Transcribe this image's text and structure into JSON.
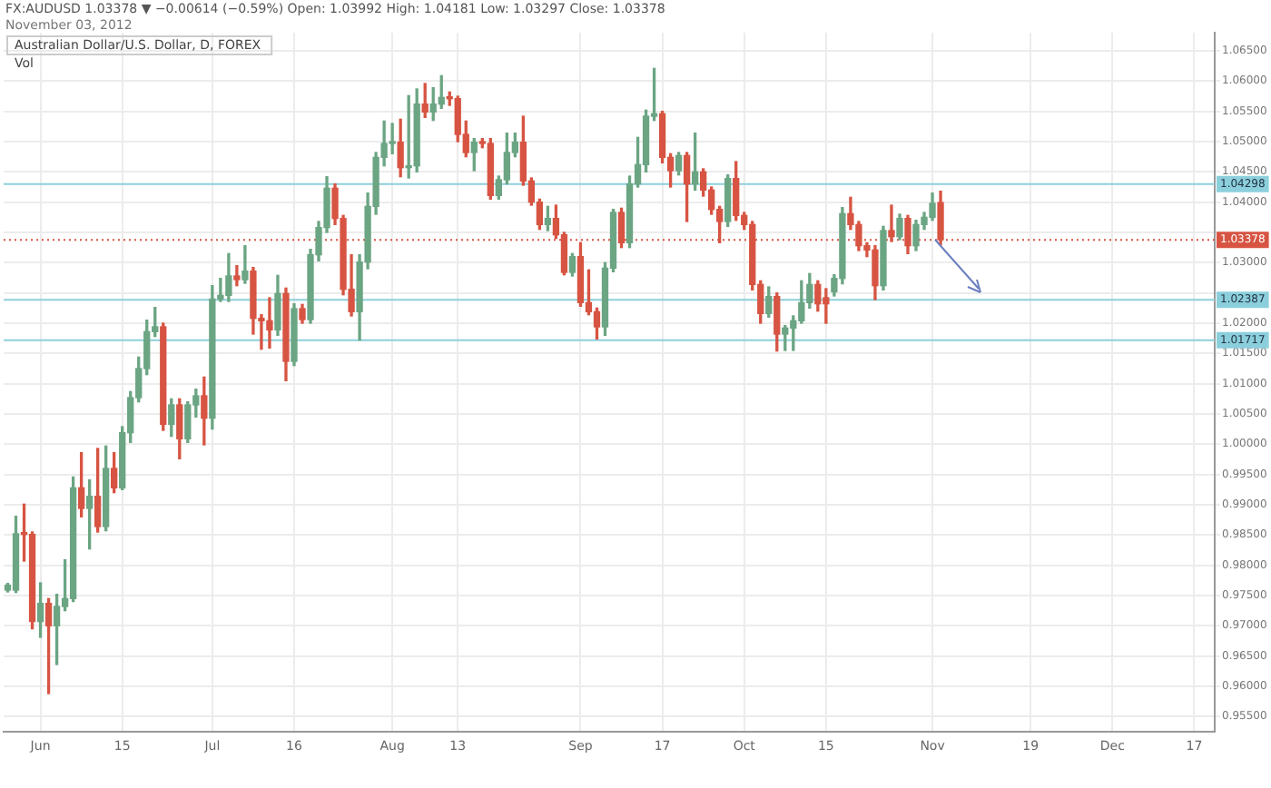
{
  "chart_data": {
    "type": "candlestick",
    "title": "FX:AUDUSD 1.03378 ▼ −0.00614 (−0.59%) Open: 1.03992 High: 1.04181 Low: 1.03297 Close: 1.03378",
    "subtitle": "November 03, 2012",
    "annotations": [
      "Australian Dollar/U.S. Dollar, D, FOREX",
      "Vol"
    ],
    "categories": [
      null,
      null,
      null,
      null,
      "Jun",
      null,
      null,
      null,
      null,
      null,
      null,
      null,
      null,
      null,
      "15",
      null,
      null,
      null,
      null,
      null,
      null,
      null,
      null,
      null,
      null,
      "Jul",
      null,
      null,
      null,
      null,
      null,
      null,
      null,
      null,
      null,
      "16",
      null,
      null,
      null,
      null,
      null,
      null,
      null,
      null,
      null,
      null,
      null,
      "Aug",
      null,
      null,
      null,
      null,
      null,
      null,
      null,
      "13",
      null,
      null,
      null,
      null,
      null,
      null,
      null,
      null,
      null,
      null,
      null,
      null,
      null,
      null,
      "Sep",
      null,
      null,
      null,
      null,
      null,
      null,
      null,
      null,
      null,
      "17",
      null,
      null,
      null,
      null,
      null,
      null,
      null,
      null,
      null,
      "Oct",
      null,
      null,
      null,
      null,
      null,
      null,
      null,
      null,
      null,
      "15",
      null,
      null,
      null,
      null,
      null,
      null,
      null,
      null,
      null,
      null,
      null,
      null,
      "Nov",
      null,
      null,
      null,
      null,
      null,
      null,
      null,
      null,
      null,
      null,
      null,
      "19",
      null,
      null,
      null,
      null,
      null,
      null,
      null,
      null,
      null,
      "Dec",
      null,
      null,
      null,
      null,
      null,
      null,
      null,
      null,
      null,
      "17",
      null,
      null
    ],
    "ohlc": [
      [
        0.9759,
        0.977,
        0.9756,
        0.9767
      ],
      [
        0.9759,
        0.9881,
        0.9755,
        0.9852
      ],
      [
        0.9852,
        0.9901,
        0.9807,
        0.9851
      ],
      [
        0.9851,
        0.9855,
        0.9695,
        0.9707
      ],
      [
        0.9707,
        0.9771,
        0.9681,
        0.9737
      ],
      [
        0.9737,
        0.9745,
        0.9588,
        0.97
      ],
      [
        0.97,
        0.9752,
        0.9636,
        0.9732
      ],
      [
        0.9732,
        0.9809,
        0.9725,
        0.9745
      ],
      [
        0.9745,
        0.9946,
        0.974,
        0.9928
      ],
      [
        0.9928,
        0.9986,
        0.988,
        0.9894
      ],
      [
        0.9894,
        0.9941,
        0.9827,
        0.9914
      ],
      [
        0.9914,
        0.9993,
        0.9855,
        0.9864
      ],
      [
        0.9864,
        0.9997,
        0.9857,
        0.996
      ],
      [
        0.996,
        0.9986,
        0.992,
        0.9928
      ],
      [
        0.9928,
        1.0029,
        0.9925,
        1.0019
      ],
      [
        1.0019,
        1.0087,
        1.0003,
        1.0077
      ],
      [
        1.0077,
        1.0144,
        1.007,
        1.0125
      ],
      [
        1.0125,
        1.0205,
        1.0115,
        1.0186
      ],
      [
        1.0186,
        1.0226,
        1.0178,
        1.0194
      ],
      [
        1.0194,
        1.02,
        1.0023,
        1.0033
      ],
      [
        1.0033,
        1.0075,
        1.0013,
        1.0065
      ],
      [
        1.0065,
        1.0075,
        0.9976,
        1.0009
      ],
      [
        1.0009,
        1.007,
        1.0003,
        1.0065
      ],
      [
        1.0065,
        1.0091,
        1.0045,
        1.008
      ],
      [
        1.008,
        1.0111,
        0.9999,
        1.0043
      ],
      [
        1.0043,
        1.0262,
        1.0025,
        1.024
      ],
      [
        1.024,
        1.0274,
        1.0236,
        1.0246
      ],
      [
        1.0246,
        1.0315,
        1.0236,
        1.0278
      ],
      [
        1.0278,
        1.0295,
        1.0262,
        1.0272
      ],
      [
        1.0272,
        1.0328,
        1.0266,
        1.0286
      ],
      [
        1.0286,
        1.0292,
        1.0182,
        1.0208
      ],
      [
        1.0208,
        1.0214,
        1.0157,
        1.0204
      ],
      [
        1.0204,
        1.0242,
        1.0159,
        1.0189
      ],
      [
        1.0189,
        1.0279,
        1.018,
        1.0249
      ],
      [
        1.0249,
        1.0258,
        1.0105,
        1.0137
      ],
      [
        1.0137,
        1.0232,
        1.013,
        1.0224
      ],
      [
        1.0224,
        1.0231,
        1.02,
        1.0206
      ],
      [
        1.0206,
        1.0322,
        1.02,
        1.0313
      ],
      [
        1.0313,
        1.0368,
        1.0303,
        1.0358
      ],
      [
        1.0358,
        1.0442,
        1.035,
        1.0423
      ],
      [
        1.0423,
        1.043,
        1.0363,
        1.0373
      ],
      [
        1.0373,
        1.0378,
        1.0247,
        1.0256
      ],
      [
        1.0256,
        1.0313,
        1.0212,
        1.0219
      ],
      [
        1.0219,
        1.0313,
        1.0172,
        1.0301
      ],
      [
        1.0301,
        1.0415,
        1.029,
        1.0393
      ],
      [
        1.0393,
        1.0482,
        1.038,
        1.0474
      ],
      [
        1.0474,
        1.0534,
        1.046,
        1.0497
      ],
      [
        1.0497,
        1.053,
        1.048,
        1.0499
      ],
      [
        1.0499,
        1.0537,
        1.0442,
        1.0457
      ],
      [
        1.0457,
        1.0576,
        1.044,
        1.046
      ],
      [
        1.046,
        1.0587,
        1.045,
        1.0562
      ],
      [
        1.0562,
        1.0596,
        1.054,
        1.0549
      ],
      [
        1.0549,
        1.0589,
        1.0535,
        1.0562
      ],
      [
        1.0562,
        1.0609,
        1.0555,
        1.0573
      ],
      [
        1.0573,
        1.0582,
        1.056,
        1.0571
      ],
      [
        1.0571,
        1.0575,
        1.05,
        1.0512
      ],
      [
        1.0512,
        1.0534,
        1.0475,
        1.0482
      ],
      [
        1.0482,
        1.0505,
        1.0452,
        1.0499
      ],
      [
        1.0499,
        1.0505,
        1.049,
        1.0497
      ],
      [
        1.0497,
        1.0505,
        1.0405,
        1.0411
      ],
      [
        1.0411,
        1.0443,
        1.0405,
        1.0437
      ],
      [
        1.0437,
        1.0514,
        1.043,
        1.0482
      ],
      [
        1.0482,
        1.0514,
        1.0475,
        1.0499
      ],
      [
        1.0499,
        1.0542,
        1.0428,
        1.0435
      ],
      [
        1.0435,
        1.044,
        1.0395,
        1.04
      ],
      [
        1.04,
        1.0405,
        1.0355,
        1.0363
      ],
      [
        1.0363,
        1.0393,
        1.0353,
        1.0373
      ],
      [
        1.0373,
        1.0395,
        1.034,
        1.0346
      ],
      [
        1.0346,
        1.035,
        1.028,
        1.0284
      ],
      [
        1.0284,
        1.0315,
        1.0278,
        1.031
      ],
      [
        1.031,
        1.0333,
        1.0228,
        1.0234
      ],
      [
        1.0234,
        1.0288,
        1.0214,
        1.0219
      ],
      [
        1.0219,
        1.0225,
        1.0174,
        1.0194
      ],
      [
        1.0194,
        1.03,
        1.018,
        1.0291
      ],
      [
        1.0291,
        1.0388,
        1.0285,
        1.0383
      ],
      [
        1.0383,
        1.039,
        1.0325,
        1.0333
      ],
      [
        1.0333,
        1.0443,
        1.0325,
        1.043
      ],
      [
        1.043,
        1.0507,
        1.0425,
        1.0462
      ],
      [
        1.0462,
        1.0552,
        1.045,
        1.0542
      ],
      [
        1.0542,
        1.0621,
        1.0535,
        1.0546
      ],
      [
        1.0546,
        1.055,
        1.0465,
        1.0474
      ],
      [
        1.0474,
        1.048,
        1.0425,
        1.0452
      ],
      [
        1.0452,
        1.0482,
        1.0445,
        1.0477
      ],
      [
        1.0477,
        1.0482,
        1.0368,
        1.043
      ],
      [
        1.043,
        1.0514,
        1.042,
        1.045
      ],
      [
        1.045,
        1.0455,
        1.041,
        1.042
      ],
      [
        1.042,
        1.0425,
        1.038,
        1.0388
      ],
      [
        1.0388,
        1.0393,
        1.0333,
        1.0368
      ],
      [
        1.0368,
        1.0445,
        1.036,
        1.0439
      ],
      [
        1.0439,
        1.0467,
        1.037,
        1.0378
      ],
      [
        1.0378,
        1.0383,
        1.0355,
        1.0363
      ],
      [
        1.0363,
        1.0368,
        1.0255,
        1.0264
      ],
      [
        1.0264,
        1.027,
        1.02,
        1.0216
      ],
      [
        1.0216,
        1.026,
        1.021,
        1.0244
      ],
      [
        1.0244,
        1.025,
        1.0154,
        1.0182
      ],
      [
        1.0182,
        1.0196,
        1.0155,
        1.0192
      ],
      [
        1.0192,
        1.0212,
        1.0155,
        1.0204
      ],
      [
        1.0204,
        1.027,
        1.02,
        1.0234
      ],
      [
        1.0234,
        1.0282,
        1.0225,
        1.0264
      ],
      [
        1.0264,
        1.027,
        1.022,
        1.0232
      ],
      [
        1.0242,
        1.0257,
        1.02,
        1.0232
      ],
      [
        1.0252,
        1.028,
        1.0245,
        1.0274
      ],
      [
        1.0274,
        1.0391,
        1.0265,
        1.0381
      ],
      [
        1.0381,
        1.0408,
        1.0355,
        1.0363
      ],
      [
        1.0363,
        1.0368,
        1.032,
        1.0328
      ],
      [
        1.0328,
        1.0333,
        1.031,
        1.0321
      ],
      [
        1.0321,
        1.0328,
        1.0239,
        1.0262
      ],
      [
        1.0262,
        1.036,
        1.0255,
        1.0353
      ],
      [
        1.0353,
        1.0395,
        1.0335,
        1.0343
      ],
      [
        1.0343,
        1.038,
        1.0338,
        1.0373
      ],
      [
        1.0373,
        1.0378,
        1.0315,
        1.0328
      ],
      [
        1.0328,
        1.037,
        1.032,
        1.0363
      ],
      [
        1.0363,
        1.0383,
        1.0355,
        1.0375
      ],
      [
        1.0375,
        1.0415,
        1.037,
        1.0398
      ],
      [
        1.03992,
        1.04181,
        1.03297,
        1.03378
      ],
      null,
      null,
      null,
      null,
      null,
      null,
      null,
      null,
      null,
      null,
      null,
      null,
      null,
      null,
      null,
      null,
      null,
      null,
      null,
      null,
      null,
      null,
      null,
      null,
      null,
      null,
      null,
      null,
      null,
      null,
      null,
      null,
      null
    ],
    "colors": [
      "#6ba583",
      "#6ba583",
      "#d75442",
      "#d75442",
      "#6ba583",
      "#d75442",
      "#6ba583",
      "#6ba583",
      "#6ba583",
      "#d75442",
      "#6ba583",
      "#d75442",
      "#6ba583",
      "#d75442",
      "#6ba583",
      "#6ba583",
      "#6ba583",
      "#6ba583",
      "#6ba583",
      "#d75442",
      "#6ba583",
      "#d75442",
      "#6ba583",
      "#6ba583",
      "#d75442",
      "#6ba583",
      "#6ba583",
      "#6ba583",
      "#d75442",
      "#6ba583",
      "#d75442",
      "#d75442",
      "#d75442",
      "#6ba583",
      "#d75442",
      "#6ba583",
      "#d75442",
      "#6ba583",
      "#6ba583",
      "#6ba583",
      "#d75442",
      "#d75442",
      "#d75442",
      "#6ba583",
      "#6ba583",
      "#6ba583",
      "#6ba583",
      "#6ba583",
      "#d75442",
      "#6ba583",
      "#6ba583",
      "#d75442",
      "#6ba583",
      "#6ba583",
      "#d75442",
      "#d75442",
      "#d75442",
      "#6ba583",
      "#d75442",
      "#d75442",
      "#6ba583",
      "#6ba583",
      "#6ba583",
      "#d75442",
      "#d75442",
      "#d75442",
      "#6ba583",
      "#d75442",
      "#d75442",
      "#6ba583",
      "#d75442",
      "#d75442",
      "#d75442",
      "#6ba583",
      "#6ba583",
      "#d75442",
      "#6ba583",
      "#6ba583",
      "#6ba583",
      "#6ba583",
      "#d75442",
      "#d75442",
      "#6ba583",
      "#d75442",
      "#6ba583",
      "#d75442",
      "#d75442",
      "#d75442",
      "#6ba583",
      "#d75442",
      "#d75442",
      "#d75442",
      "#d75442",
      "#6ba583",
      "#d75442",
      "#6ba583",
      "#6ba583",
      "#6ba583",
      "#6ba583",
      "#d75442",
      "#d75442",
      "#6ba583",
      "#6ba583",
      "#d75442",
      "#d75442",
      "#d75442",
      "#d75442",
      "#6ba583",
      "#d75442",
      "#6ba583",
      "#d75442",
      "#6ba583",
      "#6ba583",
      "#6ba583",
      "#d75442",
      null,
      null,
      null,
      null,
      null,
      null,
      null,
      null,
      null,
      null,
      null,
      null,
      null,
      null,
      null,
      null,
      null,
      null,
      null,
      null,
      null,
      null,
      null,
      null,
      null,
      null,
      null,
      null,
      null,
      null,
      null,
      null,
      null
    ],
    "ylim": [
      0.9525,
      1.068
    ],
    "yticks": [
      {
        "value": 0.955,
        "label": "0.95500"
      },
      {
        "value": 0.96,
        "label": "0.96000"
      },
      {
        "value": 0.965,
        "label": "0.96500"
      },
      {
        "value": 0.97,
        "label": "0.97000"
      },
      {
        "value": 0.975,
        "label": "0.97500"
      },
      {
        "value": 0.98,
        "label": "0.98000"
      },
      {
        "value": 0.985,
        "label": "0.98500"
      },
      {
        "value": 0.99,
        "label": "0.99000"
      },
      {
        "value": 0.995,
        "label": "0.99500"
      },
      {
        "value": 1.0,
        "label": "1.00000"
      },
      {
        "value": 1.005,
        "label": "1.00500"
      },
      {
        "value": 1.01,
        "label": "1.01000"
      },
      {
        "value": 1.015,
        "label": "1.01500"
      },
      {
        "value": 1.02,
        "label": "1.02000"
      },
      {
        "value": 1.025,
        "label": null
      },
      {
        "value": 1.03,
        "label": "1.03000"
      },
      {
        "value": 1.035,
        "label": null
      },
      {
        "value": 1.04,
        "label": "1.04000"
      },
      {
        "value": 1.045,
        "label": "1.04500"
      },
      {
        "value": 1.05,
        "label": "1.05000"
      },
      {
        "value": 1.055,
        "label": "1.05500"
      },
      {
        "value": 1.06,
        "label": "1.06000"
      },
      {
        "value": 1.065,
        "label": "1.06500"
      }
    ],
    "ref_lines": [
      {
        "axis": "y",
        "value": 1.04298,
        "label": "1.04298",
        "color": "#8ccfdc"
      },
      {
        "axis": "y",
        "value": 1.02387,
        "label": "1.02387",
        "color": "#8ccfdc"
      },
      {
        "axis": "y",
        "value": 1.01717,
        "label": "1.01717",
        "color": "#8ccfdc"
      },
      {
        "axis": "y",
        "value": 1.03378,
        "label": "1.03378",
        "color": "#d75442",
        "line_style": "dotted"
      }
    ],
    "grid": true
  }
}
